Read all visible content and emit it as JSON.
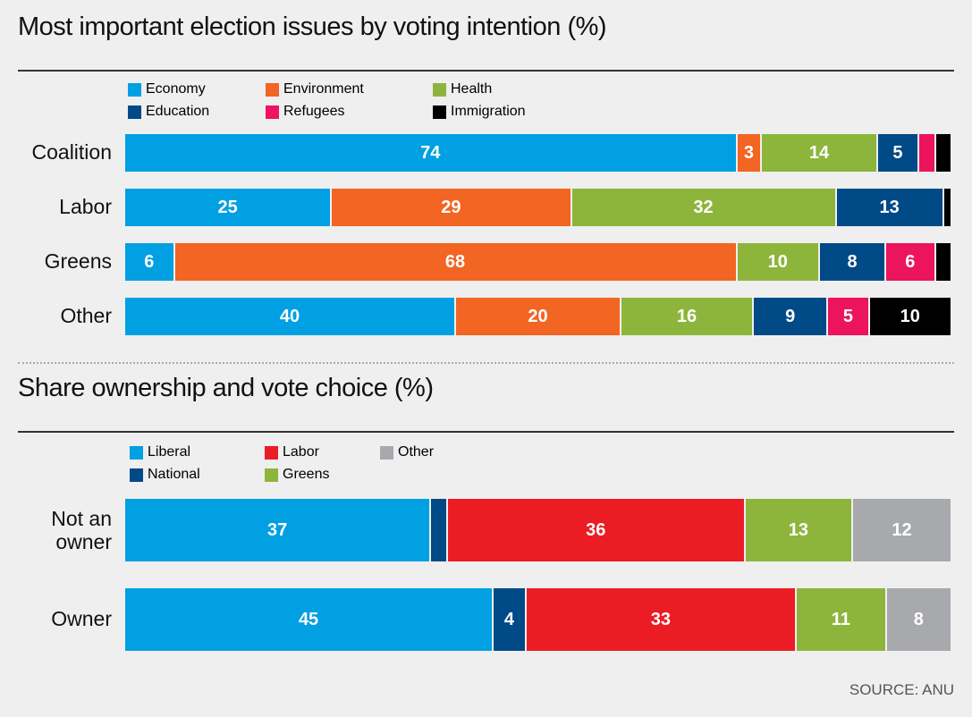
{
  "chart_data": [
    {
      "type": "bar",
      "orientation": "horizontal",
      "stacked": true,
      "title": "Most important election issues by voting intention (%)",
      "categories": [
        "Coalition",
        "Labor",
        "Greens",
        "Other"
      ],
      "legend": [
        "Economy",
        "Environment",
        "Health",
        "Education",
        "Refugees",
        "Immigration"
      ],
      "series": [
        {
          "name": "Economy",
          "color": "#00a0e2",
          "values": [
            74,
            25,
            6,
            40
          ]
        },
        {
          "name": "Environment",
          "color": "#f26522",
          "values": [
            3,
            29,
            68,
            20
          ]
        },
        {
          "name": "Health",
          "color": "#8db53c",
          "values": [
            14,
            32,
            10,
            16
          ]
        },
        {
          "name": "Education",
          "color": "#004a87",
          "values": [
            5,
            13,
            8,
            9
          ]
        },
        {
          "name": "Refugees",
          "color": "#ec145c",
          "values": [
            2,
            0,
            6,
            5
          ]
        },
        {
          "name": "Immigration",
          "color": "#000000",
          "values": [
            2,
            1,
            2,
            10
          ]
        }
      ],
      "labels_shown": [
        [
          "74",
          "3",
          "14",
          "5",
          "",
          ""
        ],
        [
          "25",
          "29",
          "32",
          "13",
          "",
          ""
        ],
        [
          "6",
          "68",
          "10",
          "8",
          "6",
          ""
        ],
        [
          "40",
          "20",
          "16",
          "9",
          "5",
          "10"
        ]
      ],
      "xlim": [
        0,
        100
      ],
      "grid": false,
      "legend_position": "top"
    },
    {
      "type": "bar",
      "orientation": "horizontal",
      "stacked": true,
      "title": "Share ownership and vote choice (%)",
      "categories": [
        "Not an owner",
        "Owner"
      ],
      "legend": [
        "Liberal",
        "Labor",
        "Other",
        "National",
        "Greens"
      ],
      "series": [
        {
          "name": "Liberal",
          "color": "#00a0e2",
          "values": [
            37,
            45
          ]
        },
        {
          "name": "National",
          "color": "#004a87",
          "values": [
            2,
            4
          ]
        },
        {
          "name": "Labor",
          "color": "#ec1c24",
          "values": [
            36,
            33
          ]
        },
        {
          "name": "Greens",
          "color": "#8db53c",
          "values": [
            13,
            11
          ]
        },
        {
          "name": "Other",
          "color": "#a7a9ac",
          "values": [
            12,
            8
          ]
        }
      ],
      "labels_shown": [
        [
          "37",
          "",
          "36",
          "13",
          "12"
        ],
        [
          "45",
          "4",
          "33",
          "11",
          "8"
        ]
      ],
      "xlim": [
        0,
        100
      ],
      "grid": false,
      "legend_position": "top"
    }
  ],
  "source": "SOURCE: ANU"
}
